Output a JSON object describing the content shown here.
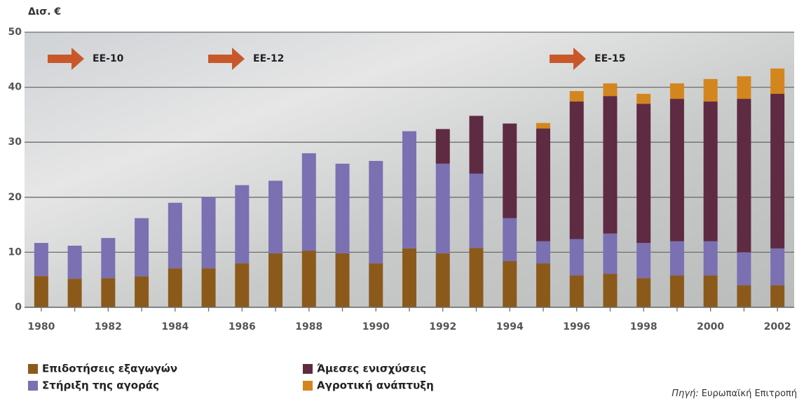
{
  "chart_data": {
    "type": "stacked_bar",
    "y_label": "Δισ. €",
    "categories": [
      "1980",
      null,
      "1982",
      null,
      "1984",
      null,
      "1986",
      null,
      "1988",
      null,
      "1990",
      null,
      "1992",
      null,
      "1994",
      null,
      "1996",
      null,
      "1998",
      null,
      "2000",
      null,
      "2002"
    ],
    "series": [
      {
        "name": "Επιδοτήσεις εξαγωγών",
        "color": "#8b5a1b",
        "values": [
          5.7,
          5.2,
          5.3,
          5.6,
          7.1,
          7.1,
          8.0,
          9.8,
          10.3,
          9.8,
          8.0,
          10.7,
          9.8,
          10.8,
          8.4,
          8.0,
          5.8,
          6.1,
          5.3,
          5.8,
          5.8,
          4.0,
          4.0
        ]
      },
      {
        "name": "Στήριξη της αγοράς",
        "color": "#7b70b2",
        "values": [
          6.0,
          6.0,
          7.3,
          10.6,
          11.9,
          12.9,
          14.2,
          13.2,
          17.7,
          16.3,
          18.6,
          21.3,
          16.3,
          13.5,
          7.8,
          4.0,
          6.6,
          7.3,
          6.4,
          6.2,
          6.2,
          6.0,
          6.7
        ]
      },
      {
        "name": "Άμεσες ενισχύσεις",
        "color": "#5e2b42",
        "values": [
          null,
          null,
          null,
          null,
          null,
          null,
          null,
          null,
          null,
          null,
          null,
          null,
          6.3,
          10.5,
          17.2,
          20.5,
          25.0,
          25.0,
          25.3,
          25.9,
          25.4,
          27.9,
          28.1
        ]
      },
      {
        "name": "Αγροτική ανάπτυξη",
        "color": "#d4861e",
        "values": [
          null,
          null,
          null,
          null,
          null,
          null,
          null,
          null,
          null,
          null,
          null,
          null,
          null,
          null,
          null,
          1.0,
          1.9,
          2.3,
          1.8,
          2.8,
          4.1,
          4.1,
          4.6
        ]
      }
    ],
    "ylim": [
      0,
      50
    ],
    "yticks": [
      0,
      10,
      20,
      30,
      40,
      50
    ],
    "grid": true,
    "annotations": [
      "ΕΕ-10",
      "ΕΕ-12",
      "ΕΕ-15"
    ],
    "source_label": "Πηγή:",
    "source": "Ευρωπαϊκή Επιτροπή"
  }
}
